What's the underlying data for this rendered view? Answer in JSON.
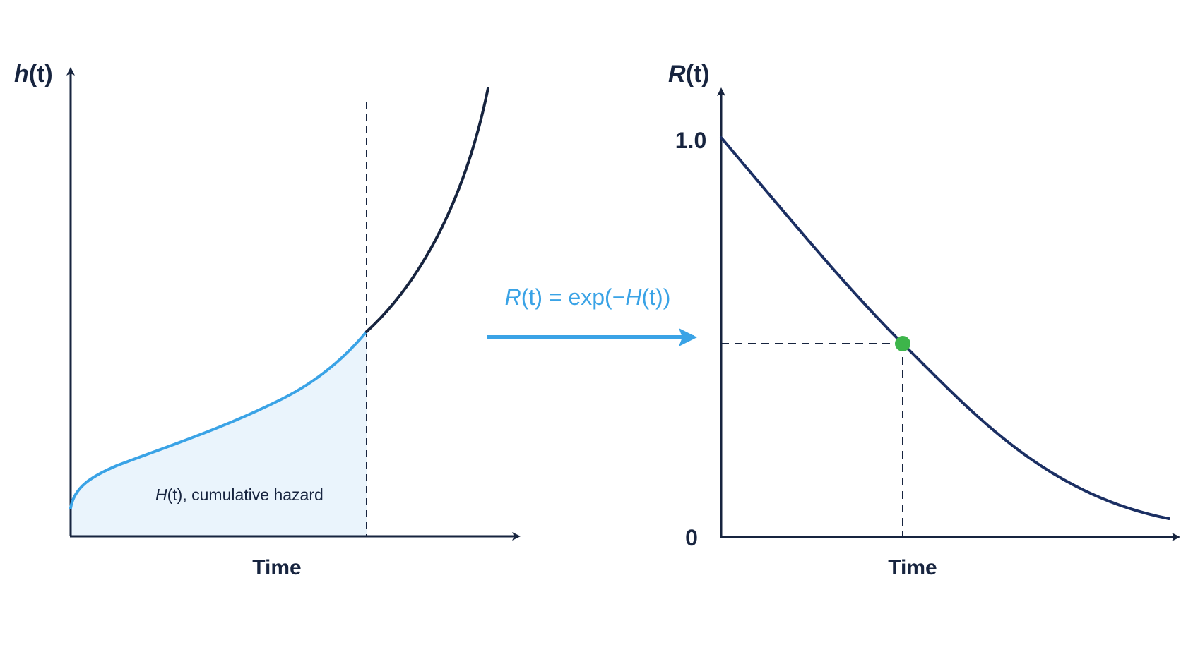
{
  "left_panel": {
    "y_title_fn": "h",
    "y_title_arg": "(t)",
    "x_label": "Time",
    "area_label_fn": "H",
    "area_label_rest": "(t), cumulative hazard"
  },
  "transform": {
    "lhs_fn": "R",
    "lhs_rest": "(t) = exp(−",
    "rhs_fn": "H",
    "rhs_rest": "(t))"
  },
  "right_panel": {
    "y_title_fn": "R",
    "y_title_arg": "(t)",
    "x_label": "Time",
    "y_tick_top": "1.0",
    "y_tick_bottom": "0"
  },
  "colors": {
    "axis": "#17243f",
    "hazard_curve": "#17243f",
    "hazard_highlight": "#3aa3e6",
    "area_fill": "#eaf4fc",
    "survival_curve": "#1b2f63",
    "marker": "#3db54a",
    "arrow": "#3aa3e6"
  }
}
